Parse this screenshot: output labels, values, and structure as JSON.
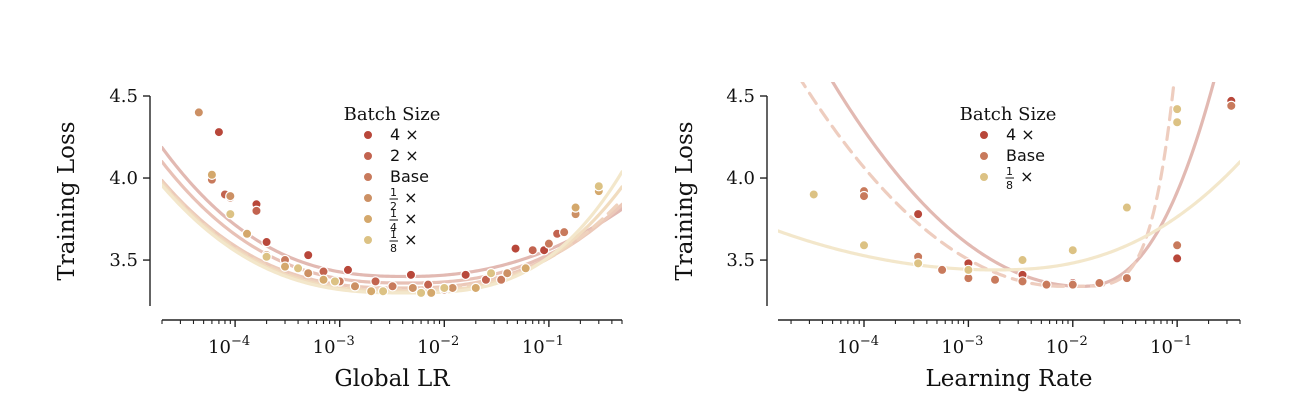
{
  "chart_data": [
    {
      "type": "scatter",
      "xlabel": "Global LR",
      "ylabel": "Training Loss",
      "xscale": "log",
      "xlim": [
        2e-05,
        0.5
      ],
      "ylim": [
        3.22,
        4.5
      ],
      "x_ticks": [
        {
          "value": 0.0001,
          "label": "10",
          "exp": "-4"
        },
        {
          "value": 0.001,
          "label": "10",
          "exp": "-3"
        },
        {
          "value": 0.01,
          "label": "10",
          "exp": "-2"
        },
        {
          "value": 0.1,
          "label": "10",
          "exp": "-1"
        }
      ],
      "y_ticks": [
        {
          "value": 3.5,
          "label": "3.5"
        },
        {
          "value": 4.0,
          "label": "4.0"
        },
        {
          "value": 4.5,
          "label": "4.5"
        }
      ],
      "legend": {
        "title": "Batch Size",
        "position": "top-center",
        "entries": [
          {
            "label": "4",
            "suffix": " ×"
          },
          {
            "label": "2",
            "suffix": " ×"
          },
          {
            "label": "Base",
            "suffix": ""
          },
          {
            "label": "",
            "frac_num": "1",
            "frac_den": "2",
            "suffix": " ×"
          },
          {
            "label": "",
            "frac_num": "1",
            "frac_den": "4",
            "suffix": " ×"
          },
          {
            "label": "",
            "frac_num": "1",
            "frac_den": "8",
            "suffix": " ×"
          }
        ]
      },
      "series": [
        {
          "name": "4×",
          "color": "#b8473a",
          "line_color": "#e2b9b2",
          "dashed": false,
          "fit": {
            "min_x": 0.0045,
            "min_y": 3.4,
            "a_left": 0.085,
            "a_right": 0.085,
            "exp_left": 2.6,
            "exp_right": 2.2
          },
          "points": [
            [
              7e-05,
              4.28
            ],
            [
              0.00016,
              3.84
            ],
            [
              0.0002,
              3.61
            ],
            [
              0.0005,
              3.53
            ],
            [
              0.0012,
              3.44
            ],
            [
              0.0048,
              3.41
            ],
            [
              0.016,
              3.41
            ],
            [
              0.048,
              3.57
            ],
            [
              0.09,
              3.56
            ]
          ]
        },
        {
          "name": "2×",
          "color": "#c2634f",
          "line_color": "#e8c1b6",
          "dashed": false,
          "fit": {
            "min_x": 0.0045,
            "min_y": 3.36,
            "a_left": 0.08,
            "a_right": 0.085,
            "exp_left": 2.6,
            "exp_right": 2.4
          },
          "points": [
            [
              8e-05,
              3.9
            ],
            [
              0.00016,
              3.8
            ],
            [
              0.0007,
              3.43
            ],
            [
              0.0022,
              3.37
            ],
            [
              0.007,
              3.35
            ],
            [
              0.025,
              3.38
            ],
            [
              0.07,
              3.56
            ],
            [
              0.12,
              3.66
            ]
          ]
        },
        {
          "name": "Base",
          "color": "#c87a5c",
          "line_color": "#ecc9b9",
          "dashed": false,
          "fit": {
            "min_x": 0.004,
            "min_y": 3.33,
            "a_left": 0.075,
            "a_right": 0.08,
            "exp_left": 2.6,
            "exp_right": 2.5
          },
          "points": [
            [
              6e-05,
              3.99
            ],
            [
              9e-05,
              3.88
            ],
            [
              0.0003,
              3.5
            ],
            [
              0.001,
              3.37
            ],
            [
              0.0032,
              3.34
            ],
            [
              0.01,
              3.32
            ],
            [
              0.035,
              3.38
            ],
            [
              0.1,
              3.6
            ],
            [
              0.14,
              3.67
            ]
          ]
        },
        {
          "name": "1/2×",
          "color": "#cc9064",
          "line_color": "#efd2bd",
          "dashed": true,
          "fit": {
            "min_x": 0.004,
            "min_y": 3.32,
            "a_left": 0.075,
            "a_right": 0.08,
            "exp_left": 2.6,
            "exp_right": 2.6
          },
          "points": [
            [
              4.5e-05,
              4.4
            ],
            [
              9e-05,
              3.89
            ],
            [
              0.0002,
              3.53
            ],
            [
              0.0005,
              3.42
            ],
            [
              0.0014,
              3.34
            ],
            [
              0.005,
              3.33
            ],
            [
              0.012,
              3.33
            ],
            [
              0.04,
              3.42
            ],
            [
              0.18,
              3.78
            ]
          ]
        },
        {
          "name": "1/4×",
          "color": "#d4a86c",
          "line_color": "#f1dcbf",
          "dashed": false,
          "fit": {
            "min_x": 0.004,
            "min_y": 3.31,
            "a_left": 0.075,
            "a_right": 0.08,
            "exp_left": 2.6,
            "exp_right": 2.8
          },
          "points": [
            [
              6e-05,
              4.02
            ],
            [
              0.00013,
              3.66
            ],
            [
              0.0003,
              3.46
            ],
            [
              0.0007,
              3.38
            ],
            [
              0.002,
              3.31
            ],
            [
              0.0075,
              3.3
            ],
            [
              0.02,
              3.33
            ],
            [
              0.06,
              3.45
            ],
            [
              0.18,
              3.82
            ],
            [
              0.3,
              3.92
            ]
          ]
        },
        {
          "name": "1/8×",
          "color": "#dcc284",
          "line_color": "#f3e7cb",
          "dashed": false,
          "fit": {
            "min_x": 0.004,
            "min_y": 3.3,
            "a_left": 0.075,
            "a_right": 0.08,
            "exp_left": 2.6,
            "exp_right": 3.0
          },
          "points": [
            [
              9e-05,
              3.78
            ],
            [
              0.0002,
              3.52
            ],
            [
              0.0004,
              3.45
            ],
            [
              0.0009,
              3.37
            ],
            [
              0.0026,
              3.31
            ],
            [
              0.006,
              3.3
            ],
            [
              0.01,
              3.33
            ],
            [
              0.028,
              3.42
            ],
            [
              0.3,
              3.95
            ]
          ]
        }
      ]
    },
    {
      "type": "scatter",
      "xlabel": "Learning Rate",
      "ylabel": "Training Loss",
      "xscale": "log",
      "xlim": [
        1.5e-05,
        0.4
      ],
      "ylim": [
        3.22,
        4.5
      ],
      "x_ticks": [
        {
          "value": 0.0001,
          "label": "10",
          "exp": "-4"
        },
        {
          "value": 0.001,
          "label": "10",
          "exp": "-3"
        },
        {
          "value": 0.01,
          "label": "10",
          "exp": "-2"
        },
        {
          "value": 0.1,
          "label": "10",
          "exp": "-1"
        }
      ],
      "y_ticks": [
        {
          "value": 3.5,
          "label": "3.5"
        },
        {
          "value": 4.0,
          "label": "4.0"
        },
        {
          "value": 4.5,
          "label": "4.5"
        }
      ],
      "legend": {
        "title": "Batch Size",
        "position": "top-center",
        "entries": [
          {
            "label": "4",
            "suffix": " ×"
          },
          {
            "label": "Base",
            "suffix": ""
          },
          {
            "label": "",
            "frac_num": "1",
            "frac_den": "8",
            "suffix": " ×"
          }
        ]
      },
      "series": [
        {
          "name": "4×",
          "color": "#b8473a",
          "line_color": "#e2b9b2",
          "dashed": false,
          "fit": {
            "min_x": 0.012,
            "min_y": 3.34,
            "a_left": 0.22,
            "a_right": 0.7,
            "exp_left": 2.0,
            "exp_right": 2.4
          },
          "points": [
            [
              0.00033,
              3.78
            ],
            [
              0.001,
              3.48
            ],
            [
              0.0033,
              3.41
            ],
            [
              0.01,
              3.36
            ],
            [
              0.1,
              3.51
            ],
            [
              0.33,
              4.47
            ]
          ]
        },
        {
          "name": "Base",
          "color": "#c87a5c",
          "line_color": "#eecdbf",
          "dashed": true,
          "fit": {
            "min_x": 0.008,
            "min_y": 3.34,
            "a_left": 0.2,
            "a_right": 0.9,
            "exp_left": 2.0,
            "exp_right": 5.0
          },
          "points": [
            [
              0.0001,
              3.92
            ],
            [
              0.0001,
              3.89
            ],
            [
              0.00033,
              3.52
            ],
            [
              0.00056,
              3.44
            ],
            [
              0.001,
              3.39
            ],
            [
              0.0018,
              3.38
            ],
            [
              0.0033,
              3.37
            ],
            [
              0.0056,
              3.35
            ],
            [
              0.01,
              3.35
            ],
            [
              0.018,
              3.36
            ],
            [
              0.033,
              3.39
            ],
            [
              0.1,
              3.59
            ],
            [
              0.33,
              4.44
            ]
          ]
        },
        {
          "name": "1/8×",
          "color": "#dcc284",
          "line_color": "#f3e7cb",
          "dashed": false,
          "fit": {
            "min_x": 0.0018,
            "min_y": 3.44,
            "a_left": 0.055,
            "a_right": 0.085,
            "exp_left": 2.0,
            "exp_right": 2.4
          },
          "points": [
            [
              3.3e-05,
              3.9
            ],
            [
              0.0001,
              3.59
            ],
            [
              0.00033,
              3.48
            ],
            [
              0.001,
              3.44
            ],
            [
              0.0033,
              3.5
            ],
            [
              0.01,
              3.56
            ],
            [
              0.033,
              3.82
            ],
            [
              0.1,
              4.34
            ],
            [
              0.1,
              4.42
            ]
          ]
        }
      ]
    }
  ]
}
